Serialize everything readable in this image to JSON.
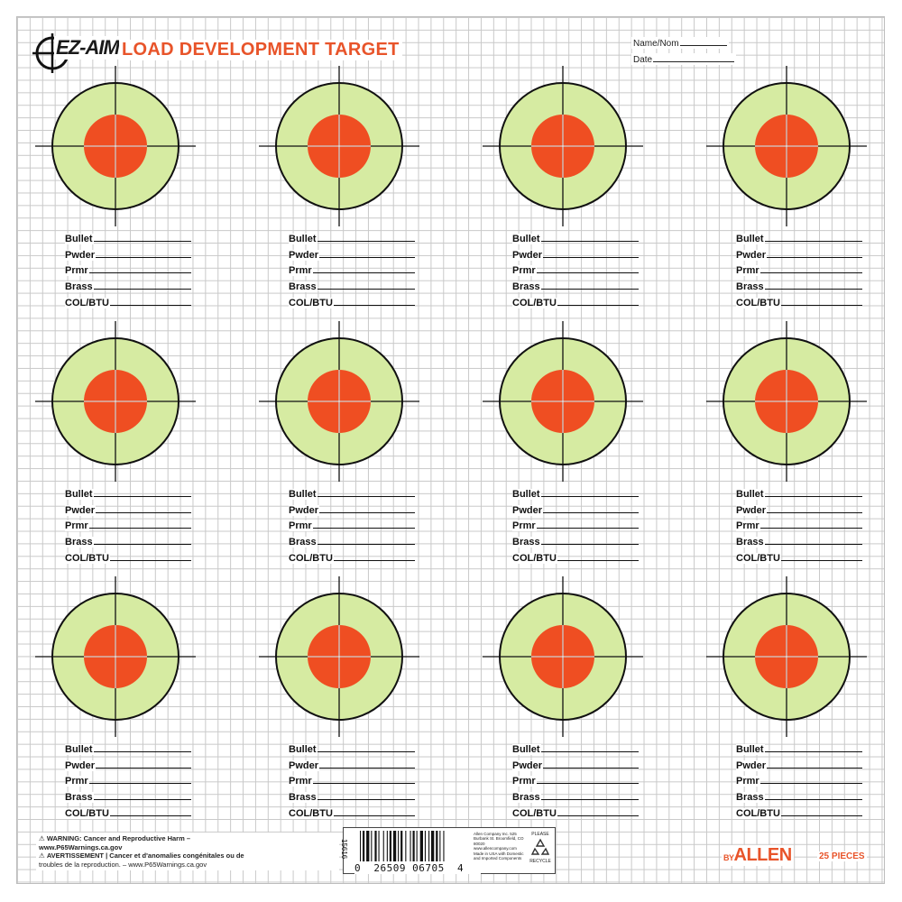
{
  "header": {
    "logo_text": "EZ-AIM",
    "title": "LOAD DEVELOPMENT TARGET",
    "name_label": "Name/Nom",
    "date_label": "Date"
  },
  "colors": {
    "accent": "#e8542a",
    "ring": "#d6eba2",
    "bullseye": "#ef4e22",
    "grid": "#c9c9c9"
  },
  "field_labels": [
    "Bullet",
    "Pwder",
    "Prmr",
    "Brass",
    "COL/BTU"
  ],
  "target_count": 12,
  "footer": {
    "warning_line1": "WARNING: Cancer and Reproductive Harm –",
    "warning_line2": "www.P65Warnings.ca.gov",
    "avertissement_line1": "AVERTISSEMENT | Cancer et d'anomalies congénitales ou de",
    "avertissement_line2": "troubles de la reproduction. – www.P65Warnings.ca.gov",
    "sku": "15616",
    "upc_first": "0",
    "upc_left": "26509",
    "upc_right": "06705",
    "upc_check": "4",
    "company_text": "Allen Company Inc. 525 Burbank St. Broomfield, CO 80020 www.allencompany.com Made in USA with Domestic and Imported Components",
    "recycle_top": "PLEASE",
    "recycle_bottom": "RECYCLE",
    "brand_prefix": "BY",
    "brand": "ALLEN",
    "pieces": "25 PIECES"
  }
}
